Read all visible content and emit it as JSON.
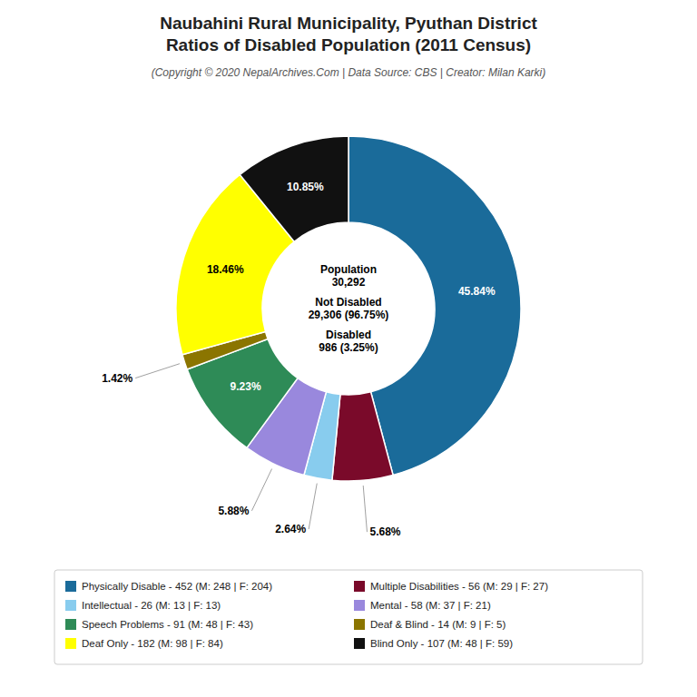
{
  "chart_data": {
    "type": "donut",
    "title": [
      "Naubahini Rural Municipality, Pyuthan District",
      "Ratios of Disabled Population (2011 Census)"
    ],
    "subtitle": "(Copyright © 2020 NepalArchives.Com | Data Source: CBS | Creator: Milan Karki)",
    "categories": [
      "Physically Disable - 452 (M: 248 | F: 204)",
      "Multiple Disabilities - 56 (M: 29 | F: 27)",
      "Intellectual - 26 (M: 13 | F: 13)",
      "Mental - 58 (M: 37 | F: 21)",
      "Speech Problems - 91 (M: 48 | F: 43)",
      "Deaf & Blind - 14 (M: 9 | F: 5)",
      "Deaf Only - 182 (M: 98 | F: 84)",
      "Blind Only - 107 (M: 48 | F: 59)"
    ],
    "values": [
      45.84,
      5.68,
      2.64,
      5.88,
      9.23,
      1.42,
      18.46,
      10.85
    ],
    "value_labels": [
      "45.84%",
      "5.68%",
      "2.64%",
      "5.88%",
      "9.23%",
      "1.42%",
      "18.46%",
      "10.85%"
    ],
    "colors": [
      "#1a6b9a",
      "#7a0a2a",
      "#88ccee",
      "#9988dd",
      "#2e8b57",
      "#8b7500",
      "#ffff00",
      "#111111"
    ],
    "data_labels": true,
    "legend": "bottom",
    "annotations": [
      "Population",
      "30,292",
      "Not Disabled",
      "29,306 (96.75%)",
      "Disabled",
      "986 (3.25%)"
    ]
  }
}
